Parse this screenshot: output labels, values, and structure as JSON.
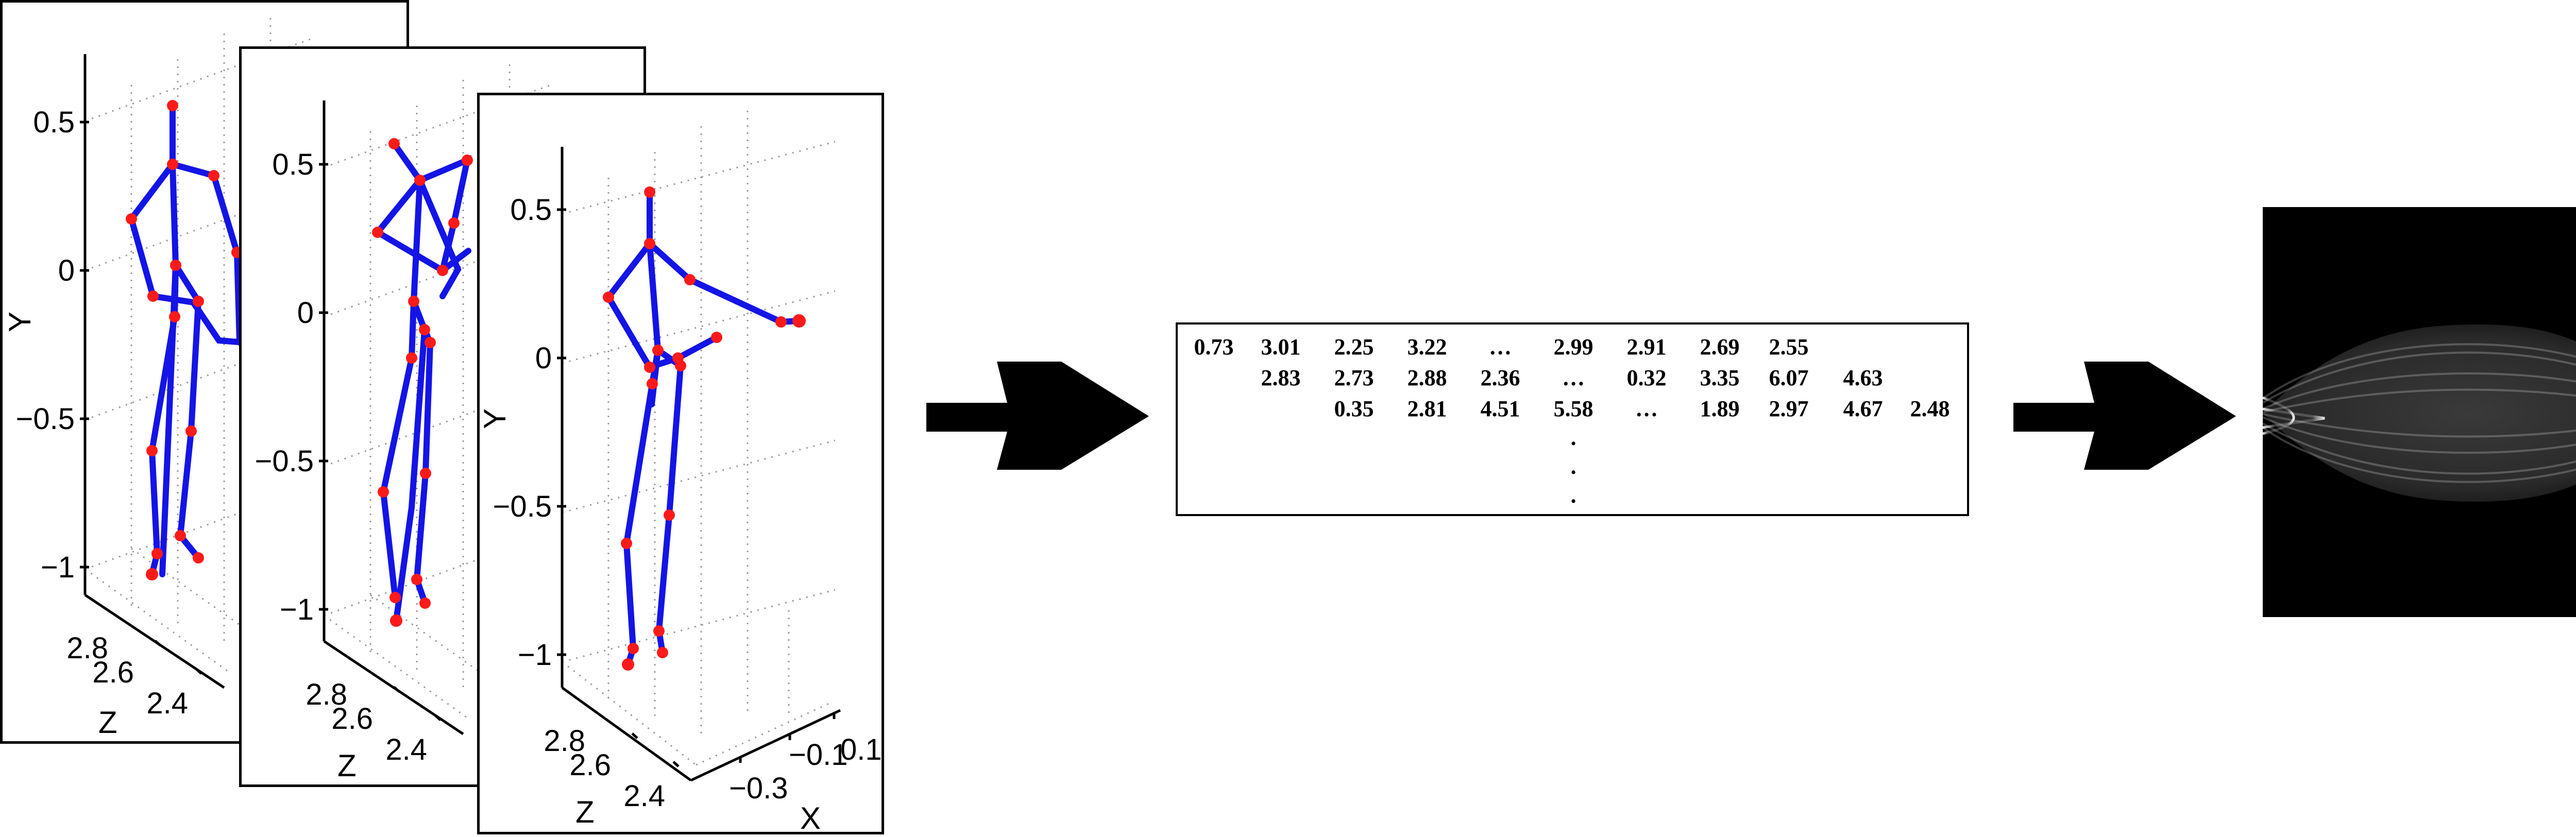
{
  "skeleton_frames": {
    "y_axis_label": "Y",
    "z_axis_label": "Z",
    "x_axis_label": "X",
    "y_ticks": [
      "0.5",
      "0",
      "−0.5",
      "−1"
    ],
    "z_ticks": [
      "2.8",
      "2.6",
      "2.4"
    ],
    "x_ticks": [
      "−0.3",
      "−0.1",
      "0.1"
    ],
    "bone_color": "#1414e6",
    "joint_color": "#ff1a1a"
  },
  "feature_matrix": {
    "rows": [
      [
        "0.73",
        "3.01",
        "2.25",
        "3.22",
        "…",
        "2.99",
        "2.91",
        "2.69",
        "2.55"
      ],
      [
        "2.83",
        "2.73",
        "2.88",
        "2.36",
        "…",
        "0.32",
        "3.35",
        "6.07",
        "4.63"
      ],
      [
        "0.35",
        "2.81",
        "4.51",
        "5.58",
        "…",
        "1.89",
        "2.97",
        "4.67",
        "2.48"
      ]
    ],
    "continuation_dots": [
      ".",
      ".",
      "."
    ]
  },
  "arrows": [
    "arrow-right-icon",
    "arrow-right-icon"
  ],
  "output_image": "sinogram-image"
}
